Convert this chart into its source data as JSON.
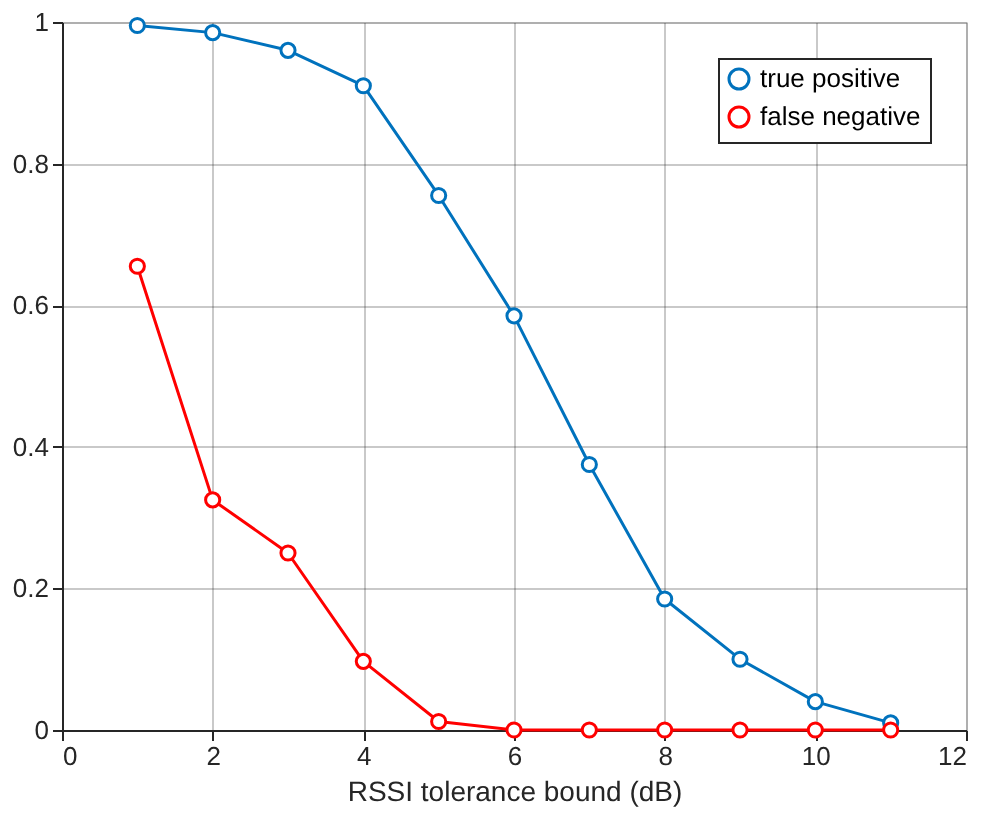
{
  "chart_data": {
    "type": "line",
    "xlabel": "RSSI tolerance bound (dB)",
    "x": [
      1,
      2,
      3,
      4,
      5,
      6,
      7,
      8,
      9,
      10,
      11
    ],
    "series": [
      {
        "name": "true positive",
        "color": "#0072bd",
        "values": [
          0.995,
          0.985,
          0.96,
          0.91,
          0.755,
          0.585,
          0.375,
          0.185,
          0.1,
          0.04,
          0.01
        ]
      },
      {
        "name": "false negative",
        "color": "#ff0000",
        "values": [
          0.655,
          0.325,
          0.25,
          0.097,
          0.012,
          0,
          0,
          0,
          0,
          0,
          0
        ]
      }
    ],
    "xlim": [
      0,
      12
    ],
    "xticks": [
      0,
      2,
      4,
      6,
      8,
      10,
      12
    ],
    "ylim": [
      0,
      1
    ],
    "yticks": [
      0,
      0.2,
      0.4,
      0.6,
      0.8,
      1
    ],
    "grid": true,
    "legend": "top right",
    "marker": "circle",
    "line_style": "solid"
  }
}
